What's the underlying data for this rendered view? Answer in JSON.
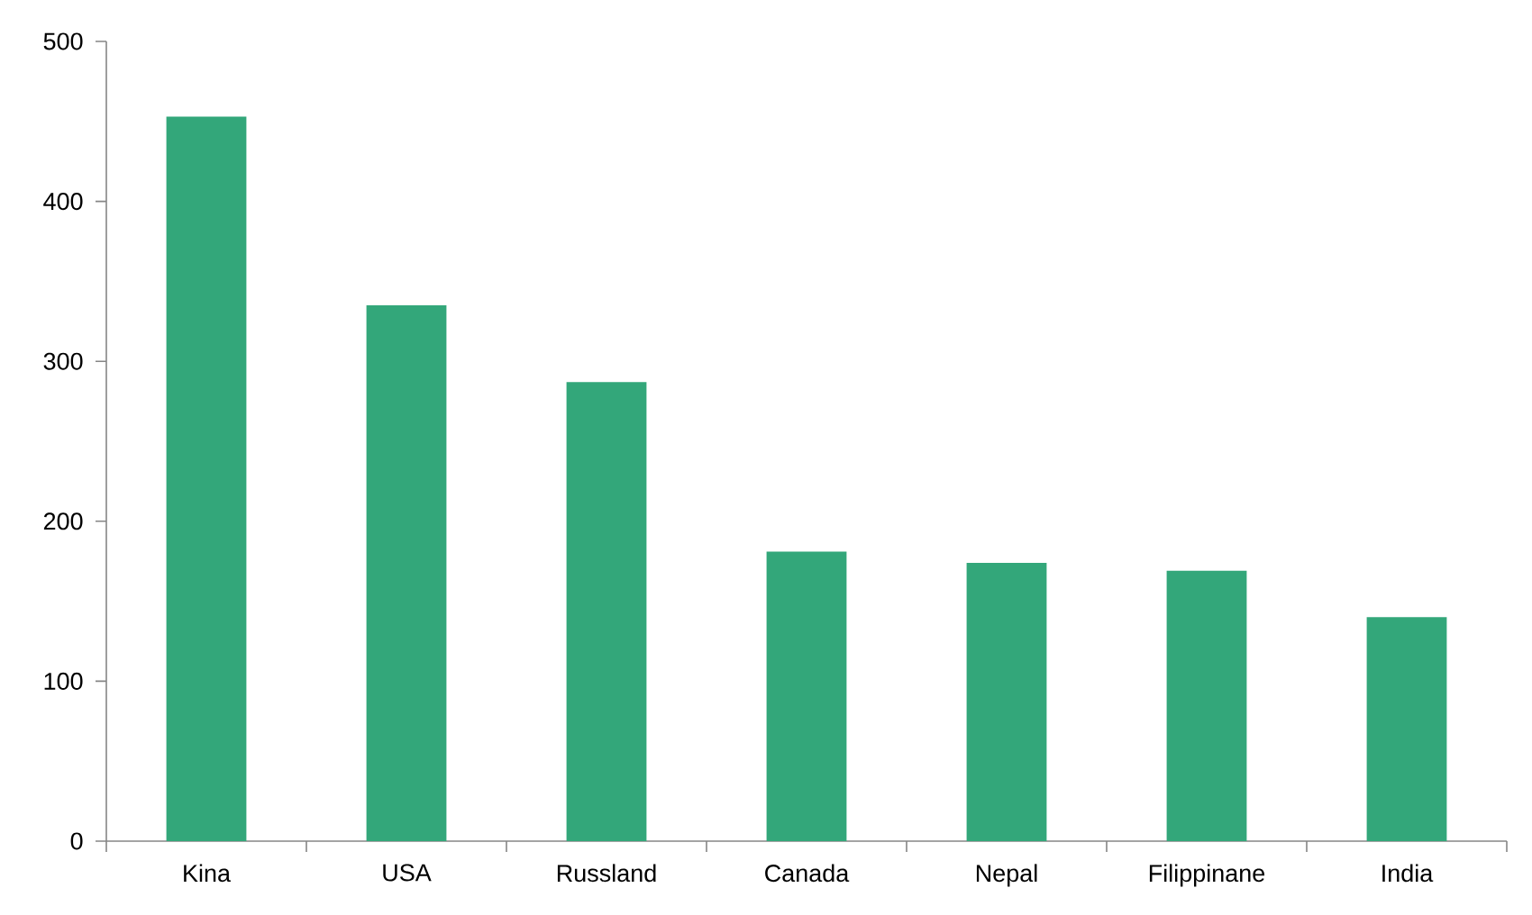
{
  "chart_data": {
    "type": "bar",
    "categories": [
      "Kina",
      "USA",
      "Russland",
      "Canada",
      "Nepal",
      "Filippinane",
      "India"
    ],
    "values": [
      453,
      335,
      287,
      181,
      174,
      169,
      140
    ],
    "color": "#33a77a",
    "ylim": [
      0,
      500
    ],
    "yticks": [
      0,
      100,
      200,
      300,
      400,
      500
    ],
    "grid": false
  }
}
